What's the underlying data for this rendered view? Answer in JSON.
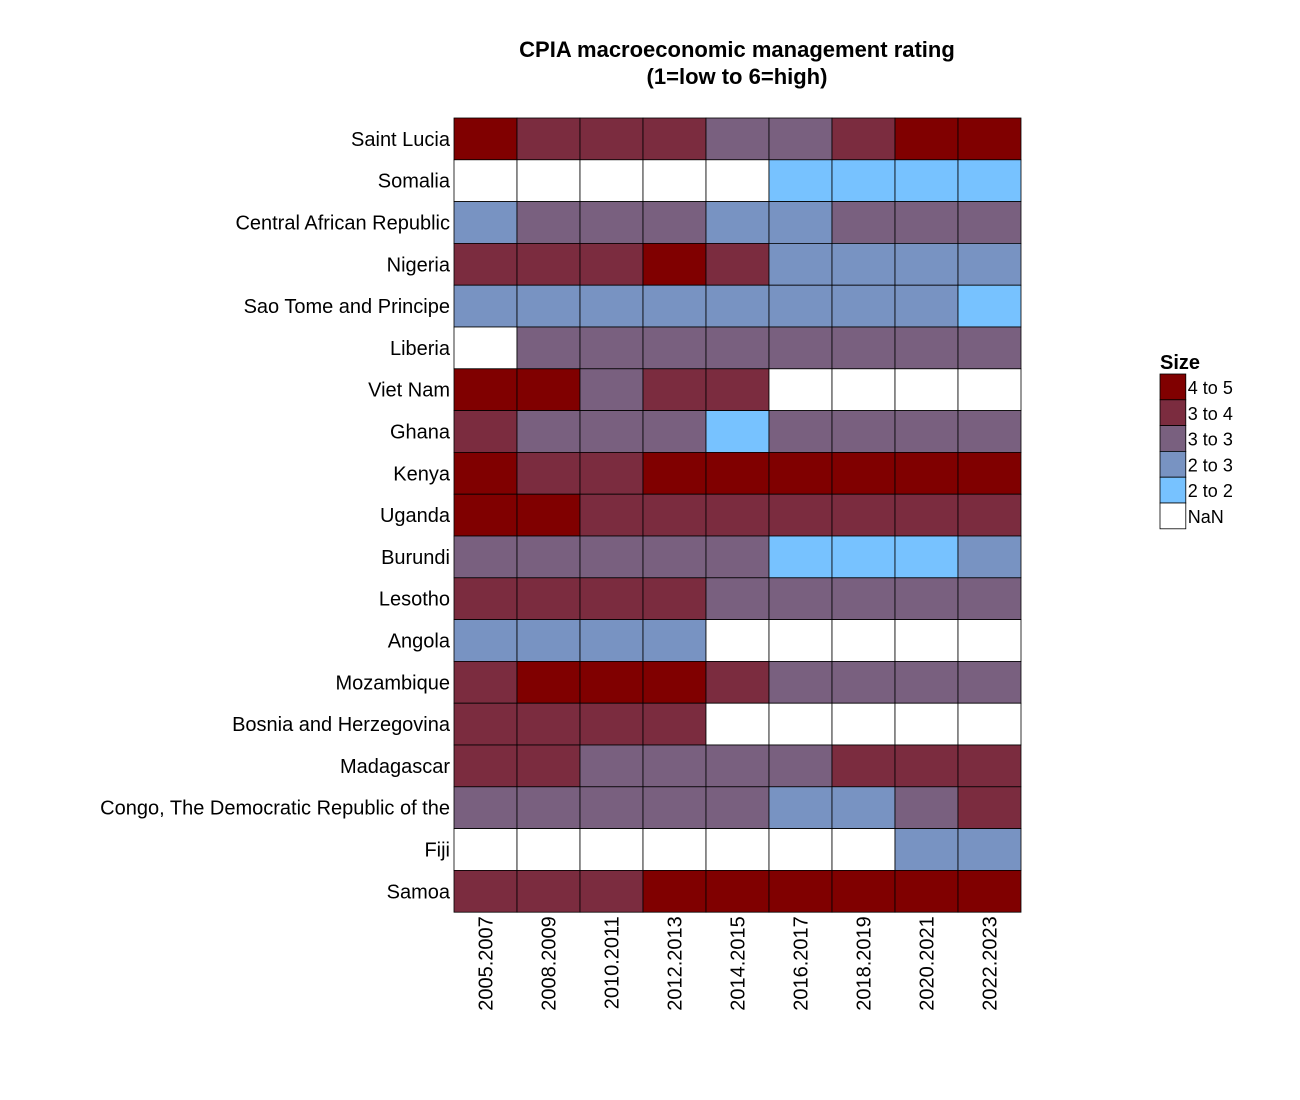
{
  "chart_data": {
    "type": "heatmap",
    "title": "CPIA macroeconomic management rating",
    "subtitle": "(1=low to 6=high)",
    "x": [
      "2005.2007",
      "2008.2009",
      "2010.2011",
      "2012.2013",
      "2014.2015",
      "2016.2017",
      "2018.2019",
      "2020.2021",
      "2022.2023"
    ],
    "y": [
      "Saint Lucia",
      "Somalia",
      "Central African Republic",
      "Nigeria",
      "Sao Tome and Principe",
      "Liberia",
      "Viet Nam",
      "Ghana",
      "Kenya",
      "Uganda",
      "Burundi",
      "Lesotho",
      "Angola",
      "Mozambique",
      "Bosnia and Herzegovina",
      "Madagascar",
      "Congo, The Democratic Republic of the",
      "Fiji",
      "Samoa"
    ],
    "cells": [
      [
        "4 to 5",
        "3 to 4",
        "3 to 4",
        "3 to 4",
        "3 to 3",
        "3 to 3",
        "3 to 4",
        "4 to 5",
        "4 to 5"
      ],
      [
        "NaN",
        "NaN",
        "NaN",
        "NaN",
        "NaN",
        "2 to 2",
        "2 to 2",
        "2 to 2",
        "2 to 2"
      ],
      [
        "2 to 3",
        "3 to 3",
        "3 to 3",
        "3 to 3",
        "2 to 3",
        "2 to 3",
        "3 to 3",
        "3 to 3",
        "3 to 3"
      ],
      [
        "3 to 4",
        "3 to 4",
        "3 to 4",
        "4 to 5",
        "3 to 4",
        "2 to 3",
        "2 to 3",
        "2 to 3",
        "2 to 3"
      ],
      [
        "2 to 3",
        "2 to 3",
        "2 to 3",
        "2 to 3",
        "2 to 3",
        "2 to 3",
        "2 to 3",
        "2 to 3",
        "2 to 2"
      ],
      [
        "NaN",
        "3 to 3",
        "3 to 3",
        "3 to 3",
        "3 to 3",
        "3 to 3",
        "3 to 3",
        "3 to 3",
        "3 to 3"
      ],
      [
        "4 to 5",
        "4 to 5",
        "3 to 3",
        "3 to 4",
        "3 to 4",
        "NaN",
        "NaN",
        "NaN",
        "NaN"
      ],
      [
        "3 to 4",
        "3 to 3",
        "3 to 3",
        "3 to 3",
        "2 to 2",
        "3 to 3",
        "3 to 3",
        "3 to 3",
        "3 to 3"
      ],
      [
        "4 to 5",
        "3 to 4",
        "3 to 4",
        "4 to 5",
        "4 to 5",
        "4 to 5",
        "4 to 5",
        "4 to 5",
        "4 to 5"
      ],
      [
        "4 to 5",
        "4 to 5",
        "3 to 4",
        "3 to 4",
        "3 to 4",
        "3 to 4",
        "3 to 4",
        "3 to 4",
        "3 to 4"
      ],
      [
        "3 to 3",
        "3 to 3",
        "3 to 3",
        "3 to 3",
        "3 to 3",
        "2 to 2",
        "2 to 2",
        "2 to 2",
        "2 to 3"
      ],
      [
        "3 to 4",
        "3 to 4",
        "3 to 4",
        "3 to 4",
        "3 to 3",
        "3 to 3",
        "3 to 3",
        "3 to 3",
        "3 to 3"
      ],
      [
        "2 to 3",
        "2 to 3",
        "2 to 3",
        "2 to 3",
        "NaN",
        "NaN",
        "NaN",
        "NaN",
        "NaN"
      ],
      [
        "3 to 4",
        "4 to 5",
        "4 to 5",
        "4 to 5",
        "3 to 4",
        "3 to 3",
        "3 to 3",
        "3 to 3",
        "3 to 3"
      ],
      [
        "3 to 4",
        "3 to 4",
        "3 to 4",
        "3 to 4",
        "NaN",
        "NaN",
        "NaN",
        "NaN",
        "NaN"
      ],
      [
        "3 to 4",
        "3 to 4",
        "3 to 3",
        "3 to 3",
        "3 to 3",
        "3 to 3",
        "3 to 4",
        "3 to 4",
        "3 to 4"
      ],
      [
        "3 to 3",
        "3 to 3",
        "3 to 3",
        "3 to 3",
        "3 to 3",
        "2 to 3",
        "2 to 3",
        "3 to 3",
        "3 to 4"
      ],
      [
        "NaN",
        "NaN",
        "NaN",
        "NaN",
        "NaN",
        "NaN",
        "NaN",
        "2 to 3",
        "2 to 3"
      ],
      [
        "3 to 4",
        "3 to 4",
        "3 to 4",
        "4 to 5",
        "4 to 5",
        "4 to 5",
        "4 to 5",
        "4 to 5",
        "4 to 5"
      ]
    ],
    "legend": {
      "title": "Size",
      "position": "right",
      "items": [
        {
          "label": "4 to 5",
          "color": "#800000"
        },
        {
          "label": "3 to 4",
          "color": "#7b2c3f"
        },
        {
          "label": "3 to 3",
          "color": "#79607f"
        },
        {
          "label": "2 to 3",
          "color": "#7893c2"
        },
        {
          "label": "2 to 2",
          "color": "#77c2ff"
        },
        {
          "label": "NaN",
          "color": "#ffffff"
        }
      ]
    },
    "grid": false
  }
}
